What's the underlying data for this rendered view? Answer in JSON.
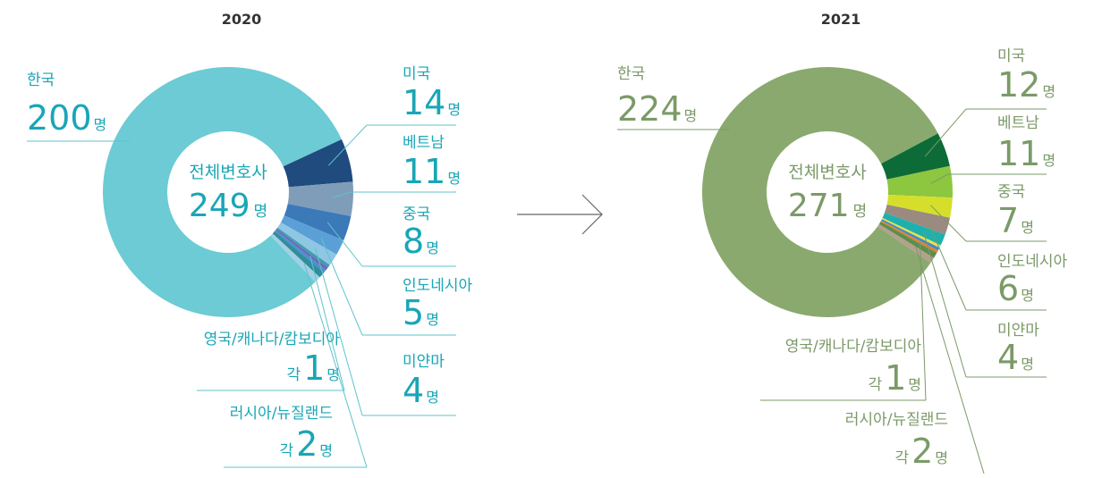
{
  "chart_data": [
    {
      "type": "pie",
      "title": "2020",
      "center_label": "전체변호사",
      "total": 249,
      "unit": "명",
      "each_label": "각",
      "categories": [
        "한국",
        "미국",
        "베트남",
        "중국",
        "인도네시아",
        "미얀마",
        "영국/캐나다/캄보디아",
        "러시아/뉴질랜드"
      ],
      "values": [
        200,
        14,
        11,
        8,
        5,
        4,
        [
          1,
          1,
          1
        ],
        [
          2,
          2
        ]
      ],
      "colors": [
        "#6ccbd4",
        "#1f4b7e",
        "#7f9db9",
        "#3b79b9",
        "#5aa0d6",
        "#8ec6e4",
        [
          "#3b9fa8",
          "#6d67bd",
          "#4d8fd0"
        ],
        [
          "#2f8e9a",
          "#a3cfe6"
        ]
      ],
      "text_color": "#19a6b6",
      "line_color": "#5fc3cc"
    },
    {
      "type": "pie",
      "title": "2021",
      "center_label": "전체변호사",
      "total": 271,
      "unit": "명",
      "each_label": "각",
      "categories": [
        "한국",
        "미국",
        "베트남",
        "중국",
        "인도네시아",
        "미얀마",
        "영국/캐나다/캄보디아",
        "러시아/뉴질랜드"
      ],
      "values": [
        224,
        12,
        11,
        7,
        6,
        4,
        [
          1,
          1,
          1
        ],
        [
          2,
          2
        ]
      ],
      "colors": [
        "#8aa96e",
        "#0d6b37",
        "#8dc63f",
        "#d5df2b",
        "#9b8a80",
        "#1fb0ae",
        [
          "#e8e145",
          "#3a8acb",
          "#e0803a"
        ],
        [
          "#5b8f4a",
          "#b5a090"
        ]
      ],
      "text_color": "#7b9a68",
      "line_color": "#7b9a68"
    }
  ]
}
